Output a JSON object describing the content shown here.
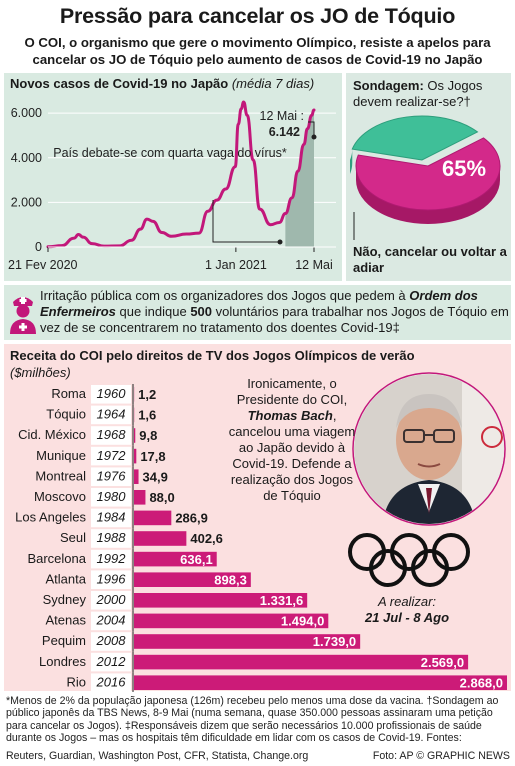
{
  "header": {
    "title": "Pressão para cancelar os JO de Tóquio",
    "subtitle": "O COI, o organismo que gere o movimento Olímpico, resiste a apelos para cancelar os JO de Tóquio pelo aumento de casos de Covid-19 no Japão"
  },
  "line_panel": {
    "title": "Novos casos de Covid-19 no Japão",
    "title_note": "(média 7 dias)",
    "annotation_wave": "País debate-se com quarta vaga do vírus*",
    "annotation_peak_date": "12 Mai :",
    "annotation_peak_value": "6.142"
  },
  "survey": {
    "label": "Sondagem:",
    "question": "Os Jogos devem realizar-se?†",
    "percent": "65%",
    "answer": "Não, cancelar ou voltar a adiar",
    "value": 0.65
  },
  "nurses": {
    "text_1": "Irritação pública com os organizadores dos Jogos que pedem à ",
    "text_bold": "Ordem dos Enfermeiros",
    "text_2": " que indique ",
    "text_count": "500",
    "text_3": " voluntários para trabalhar nos Jogos de Tóquio em vez de se concentrarem no tratamento dos doentes Covid-19‡"
  },
  "bar_panel": {
    "title": "Receita do COI pelo direitos de TV dos Jogos Olímpicos de verão",
    "unit": "($milhões)"
  },
  "bach": {
    "text_1": "Ironicamente, o Presidente do COI, ",
    "name": "Thomas Bach",
    "text_2": ", cancelou uma viagem ao Japão devido à Covid-19. Defende a realização dos Jogos de Tóquio"
  },
  "upcoming": {
    "label": "A realizar:",
    "dates": "21 Jul - 8 Ago"
  },
  "footnote": "*Menos de 2% da população japonesa (126m) recebeu pelo menos uma dose da vacina. †Sondagem ao público japonês da TBS News, 8-9 Mai (numa semana, quase 350.000 pessoas assinaram uma petição para cancelar os Jogos). ‡Responsáveis dizem que serão necessários 10.000 profissionais de saúde durante os Jogos – mas os hospitais têm dificuldade em lidar com os casos de Covid-19. Fontes:",
  "sources": "Reuters, Guardian, Washington Post, CFR, Statista, Change.org",
  "credit": "Foto: AP   © GRAPHIC NEWS",
  "colors": {
    "magenta": "#c2177a",
    "bar_magenta": "#cc1b78",
    "teal": "#3fbf98",
    "green_panel": "#d9eae1",
    "pink_panel": "#fbe0e0"
  },
  "chart_data": [
    {
      "type": "line",
      "title": "Novos casos de Covid-19 no Japão",
      "subtitle": "(média 7 dias)",
      "x_tick_labels": [
        "21 Fev 2020",
        "1 Jan 2021",
        "12 Mai"
      ],
      "y_tick_labels": [
        "0",
        "2.000",
        "4.000",
        "6.000"
      ],
      "ylim": [
        0,
        6500
      ],
      "series": [
        {
          "x": [
            "2020-02-21",
            "2020-03-15",
            "2020-04-05",
            "2020-04-12",
            "2020-04-20",
            "2020-05-05",
            "2020-05-25",
            "2020-06-20",
            "2020-07-10",
            "2020-07-25",
            "2020-08-05",
            "2020-08-15",
            "2020-08-30",
            "2020-09-15",
            "2020-10-10",
            "2020-10-31",
            "2020-11-15",
            "2020-11-30",
            "2020-12-15",
            "2020-12-31",
            "2021-01-05",
            "2021-01-10",
            "2021-01-14",
            "2021-01-20",
            "2021-01-30",
            "2021-02-10",
            "2021-02-28",
            "2021-03-15",
            "2021-03-25",
            "2021-04-05",
            "2021-04-15",
            "2021-04-25",
            "2021-05-01",
            "2021-05-08",
            "2021-05-12"
          ],
          "values": [
            10,
            60,
            400,
            560,
            440,
            150,
            40,
            50,
            300,
            800,
            1250,
            1150,
            650,
            480,
            580,
            620,
            1600,
            2100,
            2600,
            3600,
            5500,
            6200,
            6500,
            5900,
            3900,
            1700,
            1000,
            1100,
            1500,
            2200,
            3400,
            4600,
            5300,
            5900,
            6142
          ]
        }
      ],
      "annotations": [
        "País debate-se com quarta vaga do vírus*",
        "12 Mai : 6.142"
      ]
    },
    {
      "type": "pie",
      "title": "Sondagem: Os Jogos devem realizar-se?†",
      "slices": [
        {
          "label": "Não, cancelar ou voltar a adiar",
          "value": 65
        },
        {
          "label": "",
          "value": 35
        }
      ]
    },
    {
      "type": "bar",
      "orientation": "horizontal",
      "title": "Receita do COI pelo direitos de TV dos Jogos Olímpicos de verão",
      "unit": "($milhões)",
      "categories": [
        "Roma",
        "Tóquio",
        "Cid. México",
        "Munique",
        "Montreal",
        "Moscovo",
        "Los Angeles",
        "Seul",
        "Barcelona",
        "Atlanta",
        "Sydney",
        "Atenas",
        "Pequim",
        "Londres",
        "Rio"
      ],
      "years": [
        "1960",
        "1964",
        "1968",
        "1972",
        "1976",
        "1980",
        "1984",
        "1988",
        "1992",
        "1996",
        "2000",
        "2004",
        "2008",
        "2012",
        "2016"
      ],
      "value_labels": [
        "1,2",
        "1,6",
        "9,8",
        "17,8",
        "34,9",
        "88,0",
        "286,9",
        "402,6",
        "636,1",
        "898,3",
        "1.331,6",
        "1.494,0",
        "1.739,0",
        "2.569,0",
        "2.868,0"
      ],
      "values": [
        1.2,
        1.6,
        9.8,
        17.8,
        34.9,
        88.0,
        286.9,
        402.6,
        636.1,
        898.3,
        1331.6,
        1494.0,
        1739.0,
        2569.0,
        2868.0
      ],
      "xlim": [
        0,
        2868.0
      ]
    }
  ]
}
